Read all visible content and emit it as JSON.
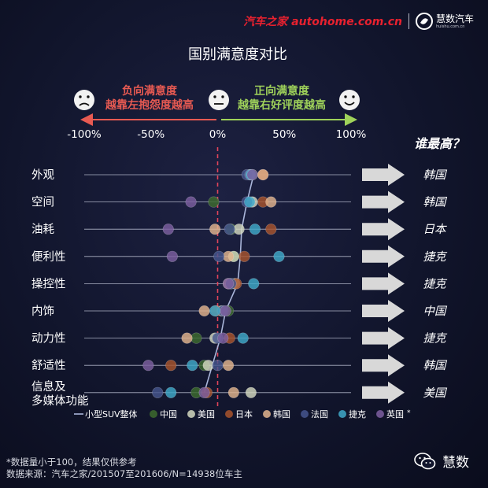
{
  "brand": {
    "site": "汽车之家 autohome.com.cn",
    "logo_name": "慧数汽车",
    "logo_url": "huishu.com.cn"
  },
  "header": {
    "title": "国别满意度对比",
    "negative_label": "负向满意度",
    "negative_sub": "越靠左抱怨度越高",
    "positive_label": "正向满意度",
    "positive_sub": "越靠右好评度越高"
  },
  "right_panel": {
    "title": "谁最高？"
  },
  "footer": {
    "note1": "*数据量小于100，结果仅供参考",
    "note2": "数据来源：汽车之家/201507至201606/N=14938位车主",
    "wechat_label": "慧数"
  },
  "colors": {
    "background": "#11152c",
    "row_line": "#c9cee0",
    "zero_line": "#e0445a",
    "overall_line": "#aab6da",
    "negative_text": "#e85a52",
    "positive_text": "#9fd25a",
    "arrow": "#d8d8d8"
  },
  "chart_data": {
    "type": "scatter",
    "title": "国别满意度对比",
    "xlim": [
      -100,
      100
    ],
    "x_tick_labels": [
      "-100%",
      "-50%",
      "0%",
      "50%",
      "100%"
    ],
    "x_ticks": [
      -100,
      -50,
      0,
      50,
      100
    ],
    "categories": [
      "外观",
      "空间",
      "油耗",
      "便利性",
      "操控性",
      "内饰",
      "动力性",
      "舒适性",
      "信息及\n多媒体功能"
    ],
    "category_lines": [
      [
        "外观"
      ],
      [
        "空间"
      ],
      [
        "油耗"
      ],
      [
        "便利性"
      ],
      [
        "操控性"
      ],
      [
        "内饰"
      ],
      [
        "动力性"
      ],
      [
        "舒适性"
      ],
      [
        "信息及",
        "多媒体功能"
      ]
    ],
    "winners": [
      "韩国",
      "韩国",
      "日本",
      "捷克",
      "捷克",
      "中国",
      "捷克",
      "韩国",
      "美国"
    ],
    "overall": {
      "name": "小型SUV整体",
      "values": [
        27,
        22,
        18,
        17,
        15,
        6,
        2,
        -4,
        -10
      ]
    },
    "series": [
      {
        "name": "中国",
        "color": "#3d6b2e",
        "values": [
          26,
          -3,
          10,
          12,
          10,
          8,
          -16,
          -10,
          -16
        ]
      },
      {
        "name": "美国",
        "color": "#d3d8c0",
        "values": [
          24,
          26,
          16,
          12,
          13,
          3,
          -2,
          -7,
          25
        ]
      },
      {
        "name": "日本",
        "color": "#a8542d",
        "values": [
          34,
          34,
          40,
          20,
          14,
          -1,
          9,
          -35,
          -8
        ]
      },
      {
        "name": "韩国",
        "color": "#e3b48e",
        "values": [
          34,
          40,
          -2,
          8,
          8,
          -10,
          -23,
          8,
          12
        ]
      },
      {
        "name": "法国",
        "color": "#45558e",
        "values": [
          22,
          22,
          9,
          1,
          10,
          4,
          0,
          0,
          -45
        ]
      },
      {
        "name": "捷克",
        "color": "#3fa9c9",
        "values": [
          25,
          24,
          28,
          46,
          27,
          -2,
          19,
          -19,
          -35
        ]
      },
      {
        "name": "英国",
        "color": "#7c5fa0",
        "values": [
          26,
          -20,
          -37,
          -34,
          8,
          6,
          4,
          -52,
          -10
        ]
      }
    ]
  }
}
